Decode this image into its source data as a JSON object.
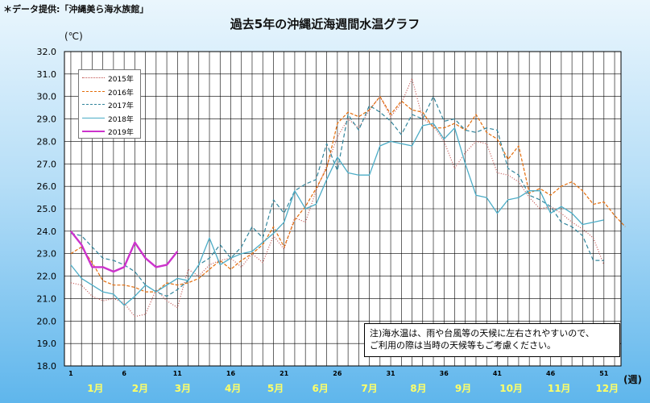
{
  "header": {
    "credit": "＊データ提供:「沖縄美ら海水族館」",
    "title": "過去5年の沖縄近海週間水温グラフ",
    "y_unit": "(℃)",
    "x_unit": "(週)"
  },
  "note": {
    "line1": "注)海水温は、雨や台風等の天候に左右されやすいので、",
    "line2": "ご利用の際は当時の天候等もご考慮ください。"
  },
  "chart_data": {
    "type": "line",
    "title": "過去5年の沖縄近海週間水温グラフ",
    "ylabel": "(℃)",
    "xlabel": "(週)",
    "xlim": [
      1,
      52
    ],
    "ylim": [
      18.0,
      32.0
    ],
    "y_ticks": [
      "18.0",
      "19.0",
      "20.0",
      "21.0",
      "22.0",
      "23.0",
      "24.0",
      "25.0",
      "26.0",
      "27.0",
      "28.0",
      "29.0",
      "30.0",
      "31.0",
      "32.0"
    ],
    "x_ticks": [
      "1",
      "6",
      "11",
      "16",
      "21",
      "26",
      "31",
      "36",
      "41",
      "46",
      "51"
    ],
    "months": [
      {
        "label": "1月",
        "week": 3.3
      },
      {
        "label": "2月",
        "week": 7.5
      },
      {
        "label": "3月",
        "week": 11.5
      },
      {
        "label": "4月",
        "week": 16.2
      },
      {
        "label": "5月",
        "week": 20.2
      },
      {
        "label": "6月",
        "week": 24.4
      },
      {
        "label": "7月",
        "week": 29.0
      },
      {
        "label": "8月",
        "week": 33.6
      },
      {
        "label": "9月",
        "week": 37.8
      },
      {
        "label": "10月",
        "week": 42.3
      },
      {
        "label": "11月",
        "week": 46.8
      },
      {
        "label": "12月",
        "week": 51.3
      }
    ],
    "grid": true,
    "legend": "top-left",
    "series": [
      {
        "name": "2015年",
        "color": "#c0504d",
        "dash": "1,2",
        "width": 1.2,
        "values": [
          21.7,
          21.6,
          21.1,
          20.9,
          21.0,
          20.8,
          20.2,
          20.3,
          21.4,
          20.9,
          20.6,
          22.3,
          22.0,
          22.5,
          22.7,
          22.8,
          22.4,
          23.0,
          22.6,
          23.8,
          23.2,
          24.6,
          24.4,
          25.8,
          26.9,
          28.2,
          29.0,
          28.6,
          29.4,
          30.0,
          29.1,
          29.7,
          30.8,
          29.0,
          28.7,
          28.0,
          26.8,
          27.5,
          28.0,
          27.9,
          26.6,
          26.5,
          26.2,
          25.5,
          25.0,
          25.1,
          24.8,
          24.4,
          24.1,
          23.7,
          22.5
        ]
      },
      {
        "name": "2016年",
        "color": "#e36c0a",
        "dash": "4,2",
        "width": 1.2,
        "values": [
          23.0,
          23.3,
          22.6,
          21.8,
          21.6,
          21.6,
          21.5,
          21.3,
          21.3,
          21.7,
          21.6,
          21.7,
          21.9,
          22.3,
          22.7,
          22.3,
          22.7,
          23.0,
          23.4,
          24.2,
          23.3,
          24.5,
          25.1,
          25.9,
          26.8,
          28.8,
          29.3,
          29.1,
          29.4,
          30.0,
          29.2,
          29.8,
          29.4,
          29.3,
          28.6,
          28.6,
          28.8,
          28.5,
          29.2,
          28.4,
          28.1,
          27.2,
          27.8,
          25.7,
          25.9,
          25.6,
          26.0,
          26.2,
          25.8,
          25.2,
          25.3,
          24.7,
          24.2
        ]
      },
      {
        "name": "2017年",
        "color": "#31859c",
        "dash": "5,3",
        "width": 1.2,
        "values": [
          23.9,
          23.8,
          23.3,
          22.8,
          22.7,
          22.5,
          22.2,
          21.6,
          21.3,
          21.1,
          21.4,
          21.8,
          22.5,
          22.8,
          23.4,
          22.8,
          23.3,
          24.2,
          23.7,
          25.4,
          24.8,
          25.8,
          26.1,
          26.3,
          27.9,
          26.7,
          29.2,
          28.5,
          29.6,
          29.3,
          28.9,
          28.3,
          29.2,
          29.0,
          30.0,
          28.9,
          29.0,
          28.5,
          28.4,
          28.6,
          28.5,
          26.8,
          26.5,
          25.6,
          25.4,
          25.1,
          24.4,
          24.2,
          23.8,
          22.7,
          22.7
        ]
      },
      {
        "name": "2018年",
        "color": "#4bacc6",
        "dash": "",
        "width": 1.3,
        "values": [
          22.5,
          21.9,
          21.6,
          21.3,
          21.2,
          20.7,
          21.1,
          21.6,
          21.3,
          21.6,
          21.9,
          21.8,
          22.5,
          23.7,
          22.5,
          22.8,
          23.0,
          23.1,
          23.5,
          23.9,
          24.4,
          25.8,
          25.0,
          25.2,
          26.3,
          27.3,
          26.6,
          26.5,
          26.5,
          27.8,
          28.0,
          27.9,
          27.8,
          28.7,
          28.8,
          28.1,
          28.6,
          27.0,
          25.6,
          25.5,
          24.8,
          25.4,
          25.5,
          25.8,
          25.8,
          24.8,
          25.1,
          24.8,
          24.3,
          24.4,
          24.5
        ]
      },
      {
        "name": "2019年",
        "color": "#cc33cc",
        "dash": "",
        "width": 2.4,
        "values": [
          24.0,
          23.4,
          22.4,
          22.4,
          22.2,
          22.4,
          23.5,
          22.8,
          22.4,
          22.5,
          23.1
        ]
      }
    ]
  }
}
